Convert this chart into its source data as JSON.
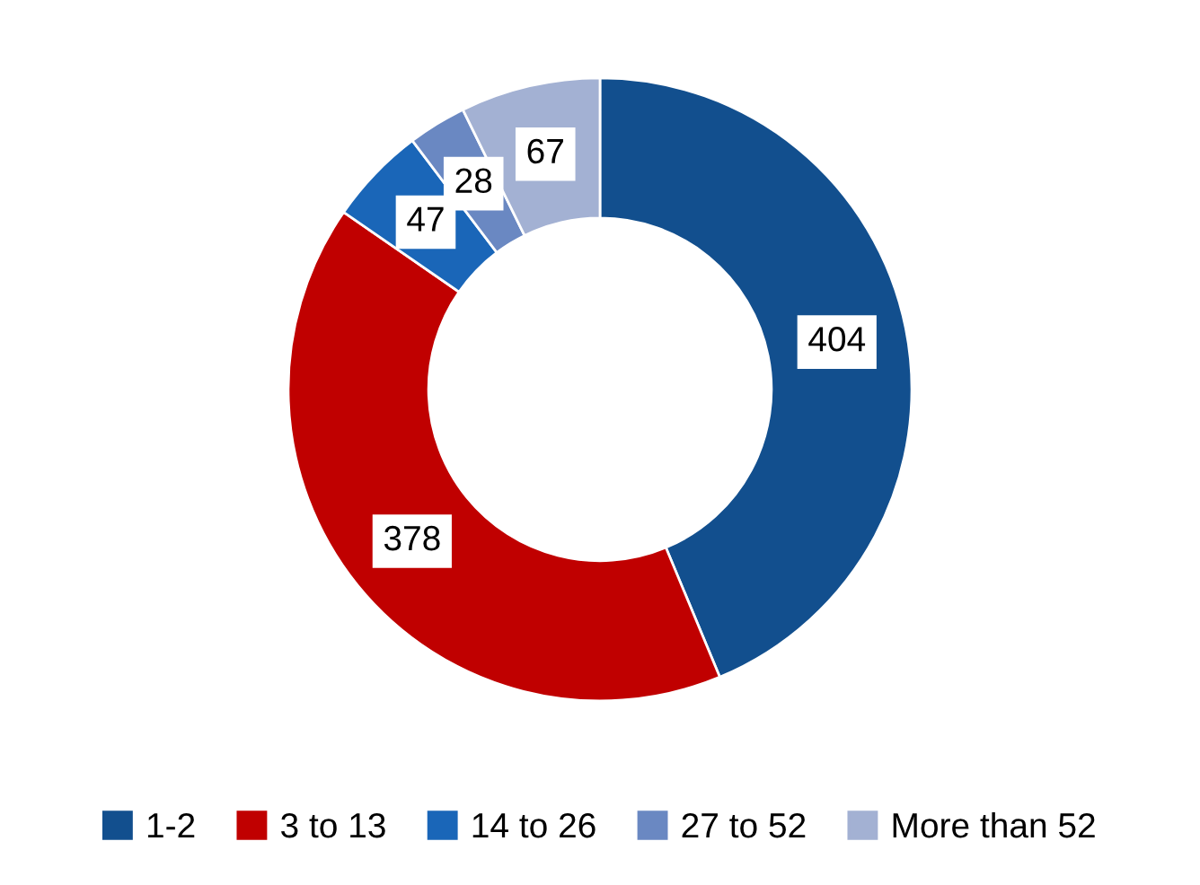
{
  "chart_data": {
    "type": "donut",
    "categories": [
      "1-2",
      "3 to 13",
      "14 to 26",
      "27 to 52",
      "More than 52"
    ],
    "values": [
      404,
      378,
      47,
      28,
      67
    ],
    "colors": [
      "#124f8e",
      "#c00000",
      "#1a66b8",
      "#6a88c2",
      "#a3b1d3"
    ],
    "data_labels": true,
    "legend": "bottom"
  }
}
